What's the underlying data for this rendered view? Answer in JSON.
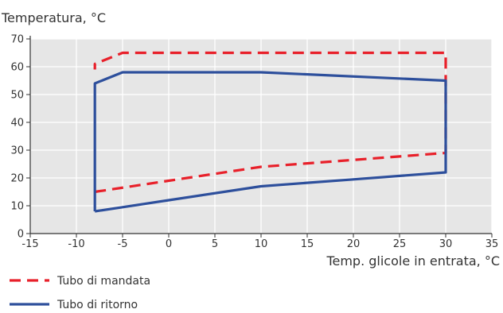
{
  "chart_data": {
    "type": "line",
    "ylabel": "Temperatura, °C",
    "xlabel": "Temp. glicole in entrata, °C",
    "xlim": [
      -15,
      35
    ],
    "ylim": [
      0,
      70
    ],
    "xticks": [
      "-15",
      "-10",
      "-5",
      "0",
      "5",
      "10",
      "15",
      "20",
      "25",
      "30",
      "35"
    ],
    "yticks": [
      "0",
      "10",
      "20",
      "30",
      "40",
      "50",
      "60",
      "70"
    ],
    "grid": true,
    "legend_position": "bottom-left",
    "series": [
      {
        "name": "Tubo di mandata",
        "color": "#e8202a",
        "style": "dashed",
        "points": [
          [
            -8,
            15
          ],
          [
            0,
            19
          ],
          [
            10,
            24
          ],
          [
            20,
            26.5
          ],
          [
            30,
            29
          ],
          [
            30,
            65
          ],
          [
            -5,
            65
          ],
          [
            -8,
            61
          ],
          [
            -8,
            59
          ]
        ]
      },
      {
        "name": "Tubo di ritorno",
        "color": "#2d4f9c",
        "style": "solid",
        "points": [
          [
            -8,
            8
          ],
          [
            -5,
            9.5
          ],
          [
            0,
            12
          ],
          [
            10,
            17
          ],
          [
            20,
            19.5
          ],
          [
            30,
            22
          ],
          [
            30,
            55
          ],
          [
            10,
            58
          ],
          [
            -5,
            58
          ],
          [
            -8,
            54
          ],
          [
            -8,
            8
          ]
        ]
      }
    ],
    "plot_background": "#e6e6e6",
    "grid_color": "#ffffff"
  }
}
